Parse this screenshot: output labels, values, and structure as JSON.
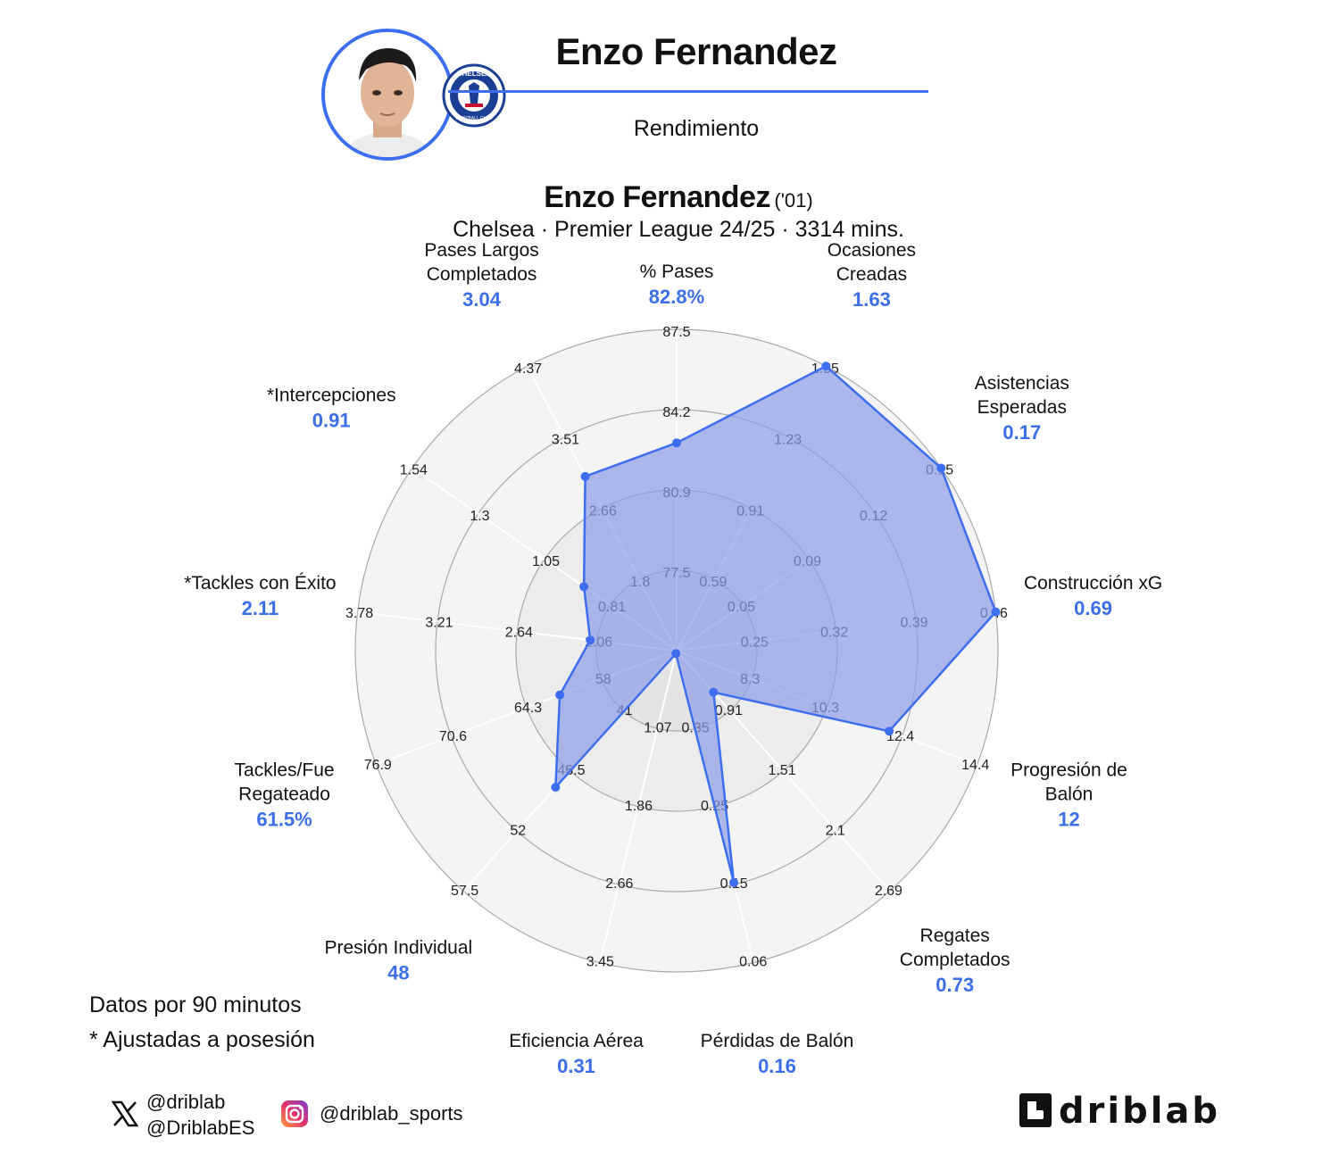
{
  "header": {
    "player_name": "Enzo Fernandez",
    "subtitle": "Rendimiento",
    "crest_text": "CHELSEA",
    "crest_sub": "FOOTBALL CLUB"
  },
  "title": {
    "name": "Enzo Fernandez",
    "birth_year": "('01)",
    "subtitle": "Chelsea · Premier League 24/25 · 3314 mins."
  },
  "notes": {
    "per90": "Datos por 90 minutos",
    "adjusted": "* Ajustadas a posesión"
  },
  "social": {
    "x_handle_1": "@driblab",
    "x_handle_2": "@DriblabES",
    "instagram": "@driblab_sports",
    "brand": "driblab"
  },
  "colors": {
    "accent": "#3d6ef0",
    "fill": "#8c9de6",
    "value_text": "#3b6fe8",
    "ring_outer": "#f4f4f4",
    "ring_mid": "#ececec",
    "ring_inner": "#e4e4e4"
  },
  "chart_data": {
    "type": "radar",
    "rings": 4,
    "axes": [
      {
        "label": [
          "% Pases"
        ],
        "value_label": "82.8%",
        "value": 82.8,
        "ticks": [
          "77.5",
          "80.9",
          "84.2",
          "87.5"
        ],
        "min": 74.2,
        "max": 87.5
      },
      {
        "label": [
          "Ocasiones",
          "Creadas"
        ],
        "value_label": "1.63",
        "value": 1.63,
        "ticks": [
          "0.59",
          "0.91",
          "1.23",
          "1.55"
        ],
        "min": 0.27,
        "max": 1.55
      },
      {
        "label": [
          "Asistencias",
          "Esperadas"
        ],
        "value_label": "0.17",
        "value": 0.17,
        "ticks": [
          "0.05",
          "0.09",
          "0.12",
          "0.15"
        ],
        "min": 0.01,
        "max": 0.15
      },
      {
        "label": [
          "Construcción xG"
        ],
        "value_label": "0.69",
        "value": 0.69,
        "ticks": [
          "0.25",
          "0.32",
          "0.39",
          "0.46"
        ],
        "min": 0.18,
        "max": 0.46
      },
      {
        "label": [
          "Progresión de",
          "Balón"
        ],
        "value_label": "12",
        "value": 12,
        "ticks": [
          "8.3",
          "10.3",
          "12.4",
          "14.4"
        ],
        "min": 6.2,
        "max": 14.4
      },
      {
        "label": [
          "Regates",
          "Completados"
        ],
        "value_label": "0.73",
        "value": 0.73,
        "ticks": [
          "0.91",
          "1.51",
          "2.1",
          "2.69"
        ],
        "min": 0.32,
        "max": 2.69
      },
      {
        "label": [
          "Pérdidas de Balón"
        ],
        "value_label": "0.16",
        "value": 0.16,
        "ticks": [
          "0.35",
          "0.25",
          "0.15",
          "0.06"
        ],
        "min": 0.45,
        "max": 0.06
      },
      {
        "label": [
          "Eficiencia Aérea"
        ],
        "value_label": "0.31",
        "value": 0.31,
        "ticks": [
          "1.07",
          "1.86",
          "2.66",
          "3.45"
        ],
        "min": 0.28,
        "max": 3.45
      },
      {
        "label": [
          "Presión Individual"
        ],
        "value_label": "48",
        "value": 48,
        "ticks": [
          "41",
          "46.5",
          "52",
          "57.5"
        ],
        "min": 35.5,
        "max": 57.5
      },
      {
        "label": [
          "Tackles/Fue",
          "Regateado"
        ],
        "value_label": "61.5%",
        "value": 61.5,
        "ticks": [
          "58",
          "64.3",
          "70.6",
          "76.9"
        ],
        "min": 51.7,
        "max": 76.9
      },
      {
        "label": [
          "*Tackles con Éxito"
        ],
        "value_label": "2.11",
        "value": 2.11,
        "ticks": [
          "2.06",
          "2.64",
          "3.21",
          "3.78"
        ],
        "min": 1.49,
        "max": 3.78
      },
      {
        "label": [
          "*Intercepciones"
        ],
        "value_label": "0.91",
        "value": 0.91,
        "ticks": [
          "0.81",
          "1.05",
          "1.3",
          "1.54"
        ],
        "min": 0.57,
        "max": 1.54
      },
      {
        "label": [
          "Pases Largos",
          "Completados"
        ],
        "value_label": "3.04",
        "value": 3.04,
        "ticks": [
          "1.8",
          "2.66",
          "3.51",
          "4.37"
        ],
        "min": 0.94,
        "max": 4.37
      }
    ]
  }
}
